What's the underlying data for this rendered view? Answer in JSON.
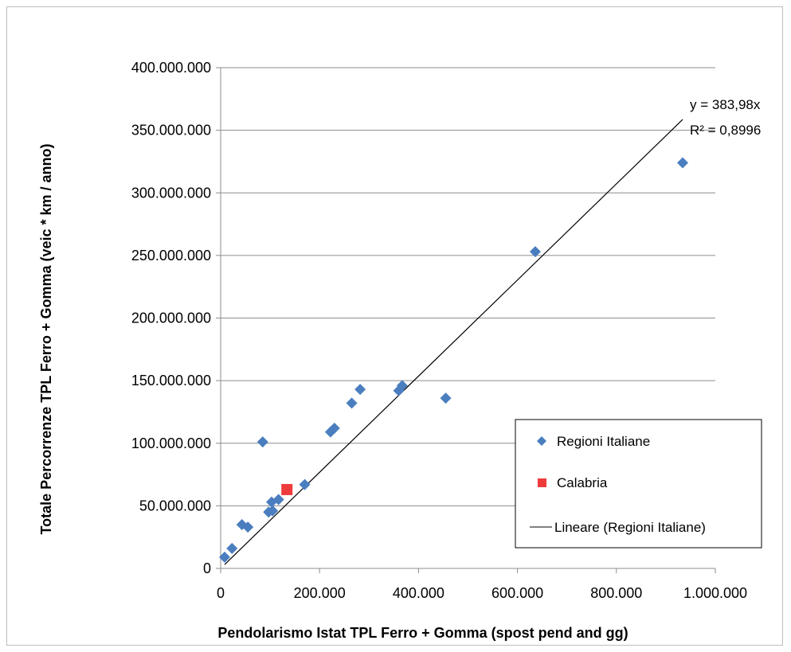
{
  "chart_data": {
    "type": "scatter",
    "xlabel": "Pendolarismo Istat TPL Ferro + Gomma (spost pend and gg)",
    "ylabel": "Totale Percorrenze TPL Ferro + Gomma  (veic * km / anno)",
    "xlim": [
      0,
      1000000
    ],
    "ylim": [
      0,
      400000000
    ],
    "x_ticks": [
      "0",
      "200.000",
      "400.000",
      "600.000",
      "800.000",
      "1.000.000"
    ],
    "y_ticks": [
      "0",
      "50.000.000",
      "100.000.000",
      "150.000.000",
      "200.000.000",
      "250.000.000",
      "300.000.000",
      "350.000.000",
      "400.000.000"
    ],
    "grid": "horizontal",
    "legend_position": "bottom-right",
    "series": [
      {
        "name": "Regioni Italiane",
        "color": "#4a7ebf",
        "marker": "diamond",
        "x": [
          8000,
          23000,
          43000,
          55000,
          85000,
          97000,
          103000,
          105000,
          117000,
          170000,
          222000,
          230000,
          265000,
          282000,
          360000,
          367000,
          455000,
          636000,
          934000
        ],
        "y": [
          9000000,
          16000000,
          35000000,
          33000000,
          101000000,
          45000000,
          53000000,
          46000000,
          55000000,
          67000000,
          109000000,
          112000000,
          132000000,
          143000000,
          142000000,
          146000000,
          136000000,
          253000000,
          324000000
        ]
      },
      {
        "name": "Calabria",
        "color": "#ee3b3b",
        "marker": "square",
        "x": [
          134000
        ],
        "y": [
          63000000
        ]
      },
      {
        "name": "Lineare (Regioni Italiane)",
        "type": "trendline",
        "color": "#000000",
        "slope": 383.98,
        "x_range": [
          8000,
          934000
        ]
      }
    ],
    "annotations": {
      "equation": "y = 383,98x",
      "r_squared": "R² = 0,8996"
    }
  }
}
